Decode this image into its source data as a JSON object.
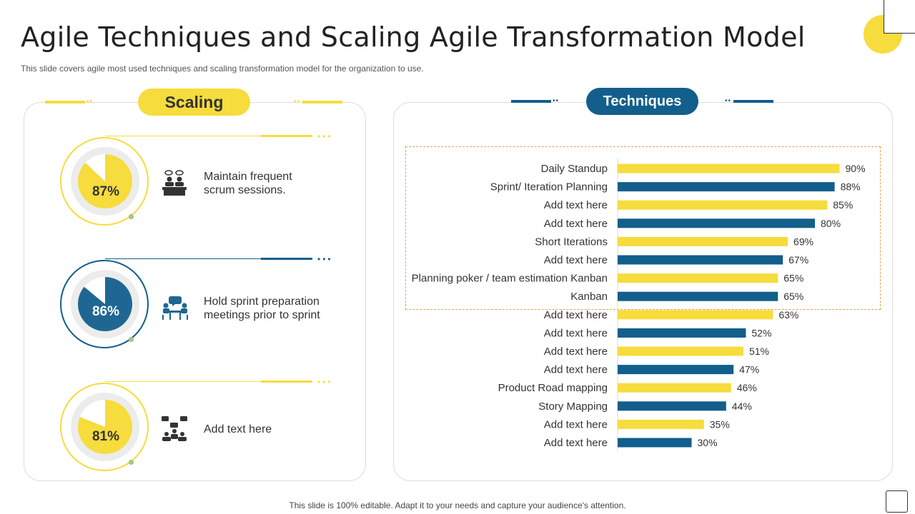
{
  "header": {
    "title": "Agile Techniques and Scaling Agile Transformation Model",
    "subtitle": "This slide covers agile most used techniques and scaling transformation model for the organization to use."
  },
  "scaling": {
    "label": "Scaling",
    "items": [
      {
        "percent": "87%",
        "value": 87,
        "text": "Maintain frequent scrum sessions.",
        "color": "#f6dc3c",
        "icon": "meeting-desk-icon"
      },
      {
        "percent": "86%",
        "value": 86,
        "text": "Hold sprint preparation meetings prior to sprint",
        "color": "#1f6792",
        "icon": "discussion-table-icon"
      },
      {
        "percent": "81%",
        "value": 81,
        "text": "Add text here",
        "color": "#f6dc3c",
        "icon": "team-chat-icon"
      }
    ]
  },
  "techniques": {
    "label": "Techniques"
  },
  "colors": {
    "yellow": "#f6dc3c",
    "blue": "#125f8c",
    "grey": "#ececec"
  },
  "chart_data": {
    "type": "bar",
    "orientation": "horizontal",
    "categories": [
      "Daily Standup",
      "Sprint/ Iteration Planning",
      "Add text here",
      "Add text here",
      "Short Iterations",
      "Add text here",
      "Planning poker / team estimation Kanban",
      "Kanban",
      "Add text here",
      "Add text here",
      "Add text here",
      "Add text here",
      "Product Road mapping",
      "Story Mapping",
      "Add text here",
      "Add text here"
    ],
    "values": [
      90,
      88,
      85,
      80,
      69,
      67,
      65,
      65,
      63,
      52,
      51,
      47,
      46,
      44,
      35,
      30
    ],
    "value_labels": [
      "90%",
      "88%",
      "85%",
      "80%",
      "69%",
      "67%",
      "65%",
      "65%",
      "63%",
      "52%",
      "51%",
      "47%",
      "46%",
      "44%",
      "35%",
      "30%"
    ],
    "bar_colors": [
      "#f6dc3c",
      "#125f8c"
    ],
    "xlim": [
      0,
      100
    ],
    "title": "",
    "xlabel": "",
    "ylabel": "",
    "grid": false,
    "highlighted_range": [
      0,
      7
    ]
  },
  "footer": {
    "text": "This slide is 100% editable. Adapt it to your needs and capture your audience's attention."
  }
}
